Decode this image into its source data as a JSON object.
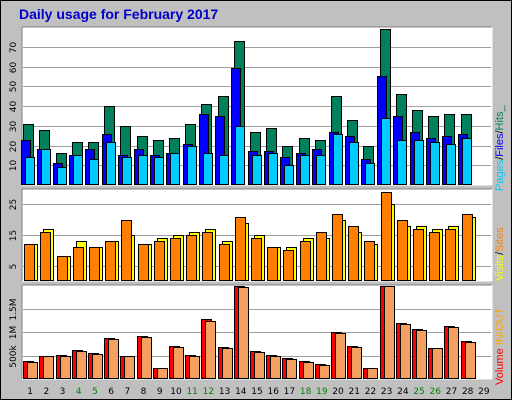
{
  "chart_data": {
    "title": "Daily usage for February 2017",
    "type": "bar",
    "categories": [
      "1",
      "2",
      "3",
      "4",
      "5",
      "6",
      "7",
      "8",
      "9",
      "10",
      "11",
      "12",
      "13",
      "14",
      "15",
      "16",
      "17",
      "18",
      "19",
      "20",
      "21",
      "22",
      "23",
      "24",
      "25",
      "26",
      "27",
      "28",
      "29"
    ],
    "weekend_days": [
      "4",
      "5",
      "11",
      "12",
      "18",
      "19",
      "25",
      "26"
    ],
    "colors": {
      "background": "#c0c0c0",
      "plot": "#ffffff",
      "hits": "#00805c",
      "files": "#0000ff",
      "pages": "#00ccff",
      "visits": "#ffff00",
      "sites": "#ff8000",
      "kbytes": "#ff0000",
      "weekday_label": "#000000",
      "weekend_label": "#008000",
      "title": "#0000cc"
    },
    "panels": [
      {
        "legend": [
          {
            "text": "Pages",
            "color": "#00ccff"
          },
          {
            "text": "/",
            "color": "#000000"
          },
          {
            "text": "Files",
            "color": "#0000ff"
          },
          {
            "text": "/",
            "color": "#000000"
          },
          {
            "text": "Hits_",
            "color": "#00805c"
          }
        ],
        "y_ticks": [
          "10",
          "20",
          "30",
          "40",
          "50",
          "60",
          "70"
        ],
        "ylim": [
          0,
          80
        ],
        "series": [
          {
            "name": "Hits",
            "values": [
              31,
              28,
              16,
              22,
              22,
              40,
              30,
              25,
              23,
              24,
              31,
              41,
              45,
              73,
              27,
              29,
              20,
              24,
              23,
              45,
              33,
              20,
              79,
              46,
              38,
              35,
              36,
              36,
              null
            ]
          },
          {
            "name": "Files",
            "values": [
              23,
              18,
              11,
              15,
              18,
              26,
              15,
              18,
              15,
              16,
              21,
              36,
              35,
              59,
              17,
              17,
              14,
              16,
              18,
              27,
              25,
              13,
              55,
              35,
              27,
              24,
              25,
              26,
              null
            ]
          },
          {
            "name": "Pages",
            "values": [
              14,
              18,
              9,
              15,
              13,
              22,
              14,
              15,
              14,
              16,
              20,
              16,
              15,
              30,
              15,
              16,
              10,
              15,
              15,
              26,
              22,
              11,
              34,
              23,
              23,
              22,
              21,
              24,
              null
            ]
          }
        ]
      },
      {
        "legend": [
          {
            "text": "Visits",
            "color": "#ffff00"
          },
          {
            "text": "/",
            "color": "#000000"
          },
          {
            "text": "Sites",
            "color": "#ff8000"
          }
        ],
        "y_ticks": [
          "5",
          "15",
          "25"
        ],
        "ylim": [
          0,
          30
        ],
        "series": [
          {
            "name": "Visits",
            "values": [
              12,
              17,
              8,
              13,
              11,
              13,
              15,
              12,
              14,
              15,
              16,
              17,
              13,
              19,
              15,
              11,
              11,
              14,
              14,
              20,
              16,
              12,
              25,
              18,
              18,
              17,
              18,
              21,
              null
            ]
          },
          {
            "name": "Sites",
            "values": [
              12,
              16,
              8,
              11,
              11,
              13,
              20,
              12,
              13,
              14,
              15,
              16,
              12,
              21,
              14,
              11,
              10,
              13,
              16,
              22,
              18,
              13,
              29,
              20,
              17,
              16,
              17,
              22,
              null
            ]
          }
        ]
      },
      {
        "legend": [
          {
            "text": "Volume",
            "color": "#ff0000"
          },
          {
            "text": "IN/OUT",
            "color": "#ffa500"
          }
        ],
        "y_ticks": [
          "500k",
          "1M",
          "1.5M"
        ],
        "ylim": [
          0,
          2000000
        ],
        "series": [
          {
            "name": "IN",
            "values": [
              380000,
              500000,
              520000,
              620000,
              560000,
              880000,
              500000,
              920000,
              240000,
              700000,
              520000,
              1270000,
              680000,
              2000000,
              590000,
              520000,
              450000,
              390000,
              310000,
              1000000,
              700000,
              240000,
              2050000,
              1200000,
              1070000,
              670000,
              1120000,
              800000,
              null
            ]
          },
          {
            "name": "OUT",
            "values": [
              360000,
              480000,
              500000,
              600000,
              540000,
              850000,
              480000,
              890000,
              230000,
              680000,
              500000,
              1240000,
              660000,
              1950000,
              570000,
              500000,
              430000,
              370000,
              300000,
              970000,
              680000,
              230000,
              2000000,
              1170000,
              1050000,
              650000,
              1100000,
              780000,
              null
            ]
          }
        ]
      }
    ]
  }
}
